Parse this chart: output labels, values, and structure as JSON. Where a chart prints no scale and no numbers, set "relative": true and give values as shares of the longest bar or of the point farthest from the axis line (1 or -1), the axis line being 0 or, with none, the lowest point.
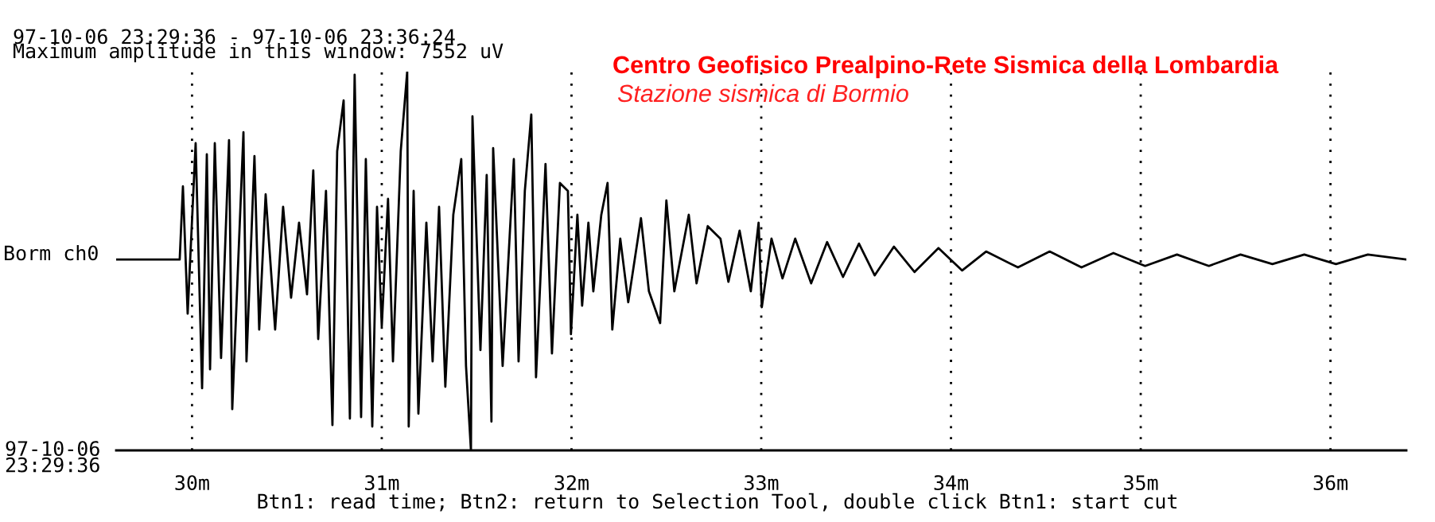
{
  "chart_data": {
    "type": "line",
    "title": "Centro Geofisico Prealpino-Rete Sismica della Lombardia",
    "subtitle": "Stazione sismica di Bormio",
    "ylabel": "Borm ch0",
    "annotations": [
      "97-10-06 23:29:36 - 97-10-06 23:36:24",
      "Maximum amplitude in this window: 7552 uV",
      "97-10-06\n23:29:36",
      "Btn1: read time; Btn2: return to Selection Tool, double click Btn1: start cut"
    ],
    "relative": true,
    "color": "#000000",
    "grid": "x",
    "xlim": [
      29.6,
      36.4
    ],
    "xticks": [
      {
        "value": 30,
        "label": "30m"
      },
      {
        "value": 31,
        "label": "31m"
      },
      {
        "value": 32,
        "label": "32m"
      },
      {
        "value": 33,
        "label": "33m"
      },
      {
        "value": 34,
        "label": "34m"
      },
      {
        "value": 35,
        "label": "35m"
      },
      {
        "value": 36,
        "label": "36m"
      }
    ],
    "x": [
      29.6,
      29.935,
      29.952,
      29.977,
      30.019,
      30.053,
      30.078,
      30.095,
      30.12,
      30.153,
      30.195,
      30.212,
      30.271,
      30.287,
      30.329,
      30.354,
      30.388,
      30.438,
      30.48,
      30.522,
      30.564,
      30.606,
      30.639,
      30.665,
      30.706,
      30.74,
      30.765,
      30.799,
      30.832,
      30.857,
      30.891,
      30.916,
      30.95,
      30.975,
      31.0,
      31.033,
      31.059,
      31.1,
      31.134,
      31.142,
      31.168,
      31.193,
      31.235,
      31.268,
      31.302,
      31.335,
      31.377,
      31.419,
      31.444,
      31.47,
      31.478,
      31.52,
      31.553,
      31.578,
      31.587,
      31.637,
      31.696,
      31.721,
      31.754,
      31.788,
      31.813,
      31.863,
      31.897,
      31.939,
      31.981,
      31.997,
      32.031,
      32.056,
      32.089,
      32.115,
      32.157,
      32.19,
      32.215,
      32.257,
      32.299,
      32.366,
      32.408,
      32.467,
      32.5,
      32.542,
      32.618,
      32.659,
      32.718,
      32.785,
      32.827,
      32.886,
      32.945,
      32.986,
      33.003,
      33.054,
      33.112,
      33.179,
      33.263,
      33.347,
      33.431,
      33.515,
      33.598,
      33.699,
      33.808,
      33.934,
      34.059,
      34.185,
      34.353,
      34.52,
      34.688,
      34.856,
      35.023,
      35.191,
      35.359,
      35.526,
      35.694,
      35.862,
      36.029,
      36.197,
      36.398
    ],
    "values": [
      0.504,
      0.504,
      0.697,
      0.361,
      0.811,
      0.164,
      0.782,
      0.214,
      0.811,
      0.244,
      0.819,
      0.109,
      0.84,
      0.235,
      0.777,
      0.319,
      0.676,
      0.319,
      0.643,
      0.403,
      0.601,
      0.412,
      0.739,
      0.294,
      0.685,
      0.067,
      0.79,
      0.924,
      0.084,
      0.992,
      0.088,
      0.769,
      0.063,
      0.643,
      0.328,
      0.664,
      0.235,
      0.79,
      1.0,
      0.063,
      0.685,
      0.097,
      0.601,
      0.235,
      0.643,
      0.168,
      0.622,
      0.769,
      0.223,
      0.0,
      0.882,
      0.265,
      0.727,
      0.076,
      0.798,
      0.223,
      0.769,
      0.235,
      0.685,
      0.887,
      0.193,
      0.756,
      0.256,
      0.706,
      0.685,
      0.307,
      0.622,
      0.382,
      0.601,
      0.42,
      0.622,
      0.706,
      0.319,
      0.559,
      0.391,
      0.613,
      0.42,
      0.336,
      0.66,
      0.42,
      0.622,
      0.441,
      0.592,
      0.559,
      0.445,
      0.58,
      0.42,
      0.601,
      0.378,
      0.559,
      0.454,
      0.559,
      0.441,
      0.55,
      0.458,
      0.546,
      0.462,
      0.538,
      0.471,
      0.534,
      0.475,
      0.525,
      0.483,
      0.525,
      0.483,
      0.521,
      0.487,
      0.517,
      0.487,
      0.517,
      0.492,
      0.517,
      0.492,
      0.517,
      0.504
    ]
  }
}
